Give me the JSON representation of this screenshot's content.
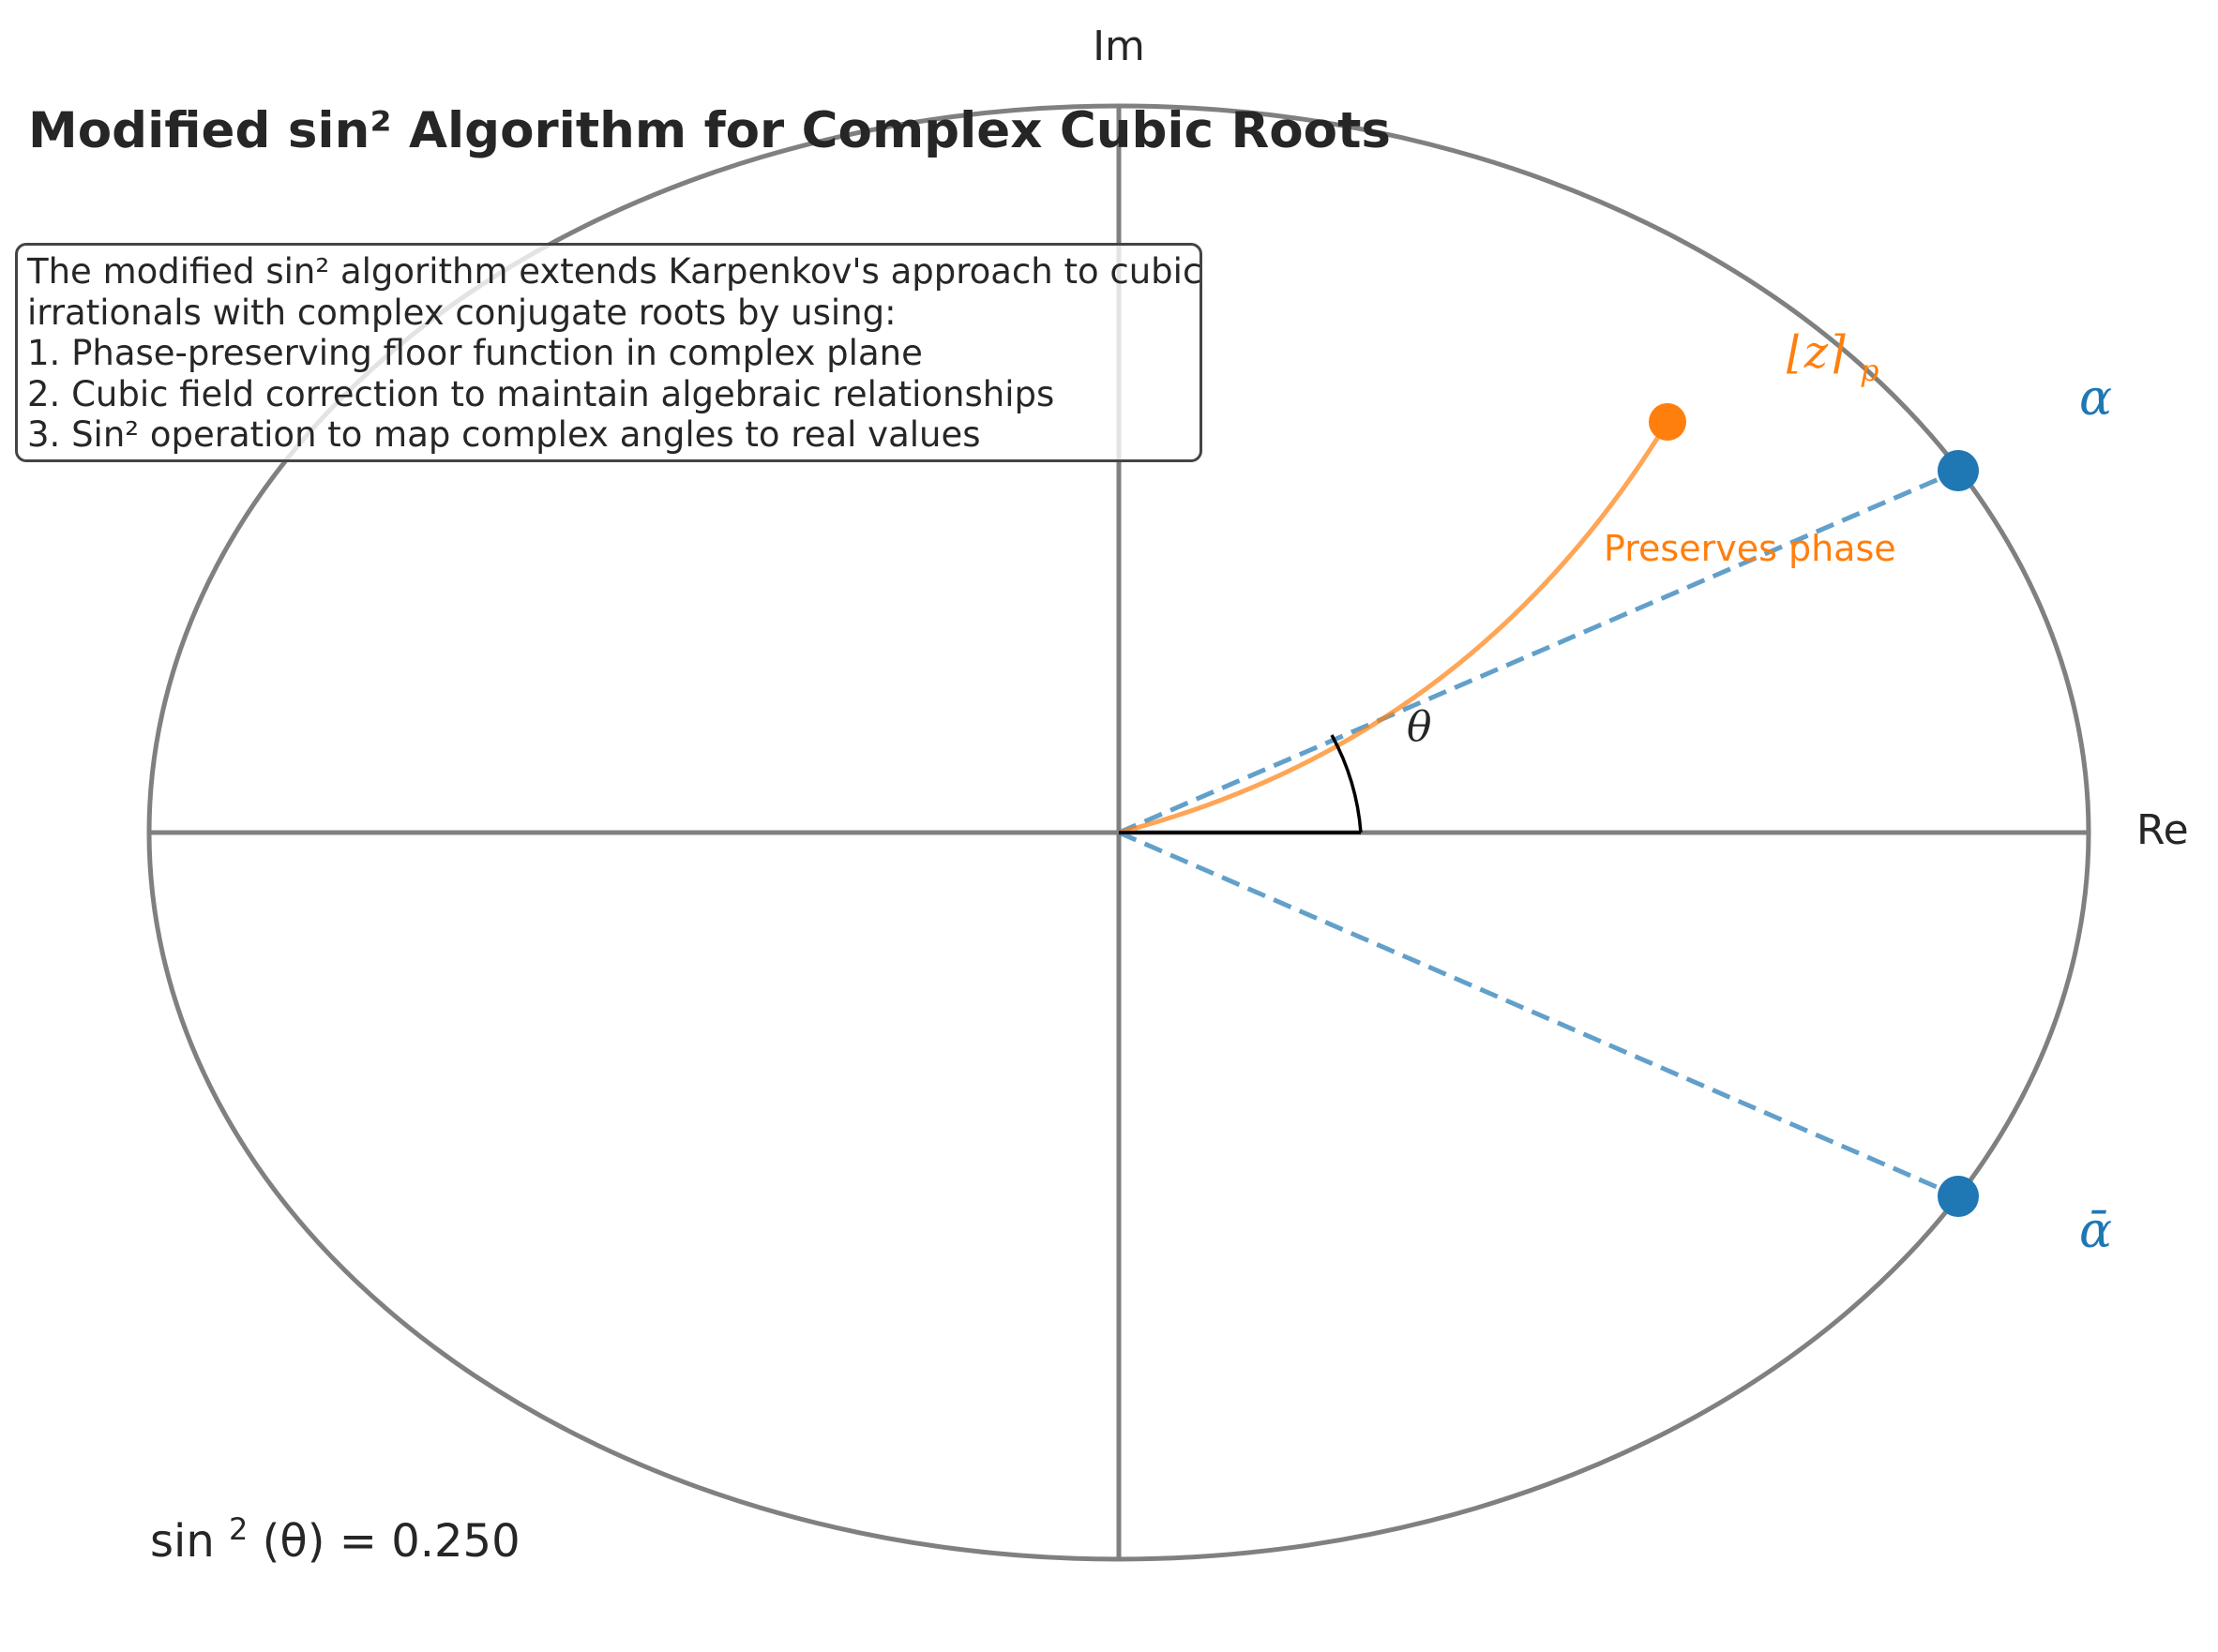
{
  "title": "Modified sin² Algorithm for Complex Cubic Roots",
  "axes": {
    "x_label": "Re",
    "y_label": "Im"
  },
  "labels": {
    "alpha": "α",
    "alpha_bar": "ᾱ",
    "theta": "θ",
    "floor_z_main": "⌊z⌉",
    "floor_z_sub": "p",
    "preserves_phase": "Preserves phase"
  },
  "info_box": {
    "lines": [
      "The modified sin² algorithm extends Karpenkov's approach to cubic",
      "irrationals with complex conjugate roots by using:",
      "1. Phase-preserving floor function in complex plane",
      "2. Cubic field correction to maintain algebraic relationships",
      "3. Sin² operation to map complex angles to real values"
    ]
  },
  "formula": {
    "prefix": "sin",
    "exponent": "2",
    "argument": "(θ) = 0.250"
  },
  "colors": {
    "root": "#1f77b4",
    "floor": "#ff7f0e",
    "circle": "#808080",
    "axis": "#808080",
    "text": "#262626"
  }
}
